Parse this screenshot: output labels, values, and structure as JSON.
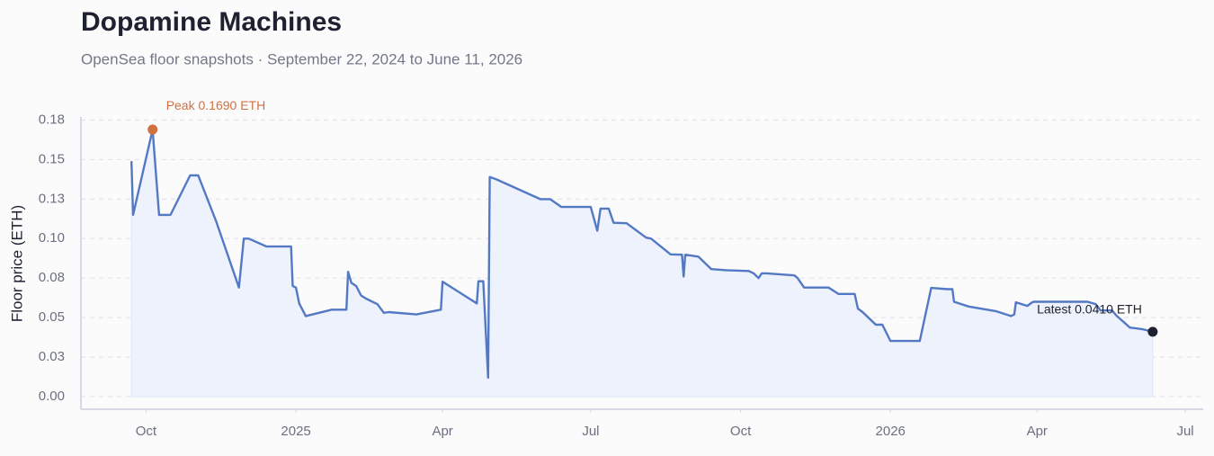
{
  "chart_data": {
    "type": "line",
    "title": "Dopamine Machines",
    "subtitle": "OpenSea floor snapshots · September 22, 2024 to June 11, 2026",
    "y_label": "Floor price (ETH)",
    "color": "#5479c4",
    "fill_color": "#edf2fc",
    "grid": true,
    "annotations": [
      {
        "text": "Peak 0.1690 ETH",
        "color": "#d2703f"
      },
      {
        "text": "Latest 0.0410 ETH",
        "color": "#1e2130"
      }
    ],
    "xlim": [
      "2024-08-22",
      "2026-07-12"
    ],
    "xticks": [
      {
        "value": "2024-10-01",
        "label": "Oct"
      },
      {
        "value": "2025-01-01",
        "label": "2025"
      },
      {
        "value": "2025-04-01",
        "label": "Apr"
      },
      {
        "value": "2025-07-01",
        "label": "Jul"
      },
      {
        "value": "2025-10-01",
        "label": "Oct"
      },
      {
        "value": "2026-01-01",
        "label": "2026"
      },
      {
        "value": "2026-04-01",
        "label": "Apr"
      },
      {
        "value": "2026-07-01",
        "label": "Jul"
      }
    ],
    "ylim": [
      -0.008,
      0.177
    ],
    "yticks": [
      {
        "value": 0,
        "label": "0.00"
      },
      {
        "value": 0.025,
        "label": "0.03"
      },
      0.05,
      {
        "value": 0.075,
        "label": "0.08"
      },
      {
        "value": 0.1,
        "label": "0.10"
      },
      {
        "value": 0.125,
        "label": "0.13"
      },
      0.15,
      {
        "value": 0.175,
        "label": "0.18"
      }
    ],
    "x": [
      "2024-09-22",
      "2024-09-23",
      "2024-10-05",
      "2024-10-09",
      "2024-10-16",
      "2024-10-28",
      "2024-11-02",
      "2024-11-13",
      "2024-11-27",
      "2024-11-30",
      "2024-12-03",
      "2024-12-14",
      "2024-12-29",
      "2024-12-30",
      "2025-01-01",
      "2025-01-03",
      "2025-01-07",
      "2025-01-23",
      "2025-02-01",
      "2025-02-02",
      "2025-02-04",
      "2025-02-07",
      "2025-02-10",
      "2025-02-13",
      "2025-02-20",
      "2025-02-24",
      "2025-02-27",
      "2025-03-16",
      "2025-03-31",
      "2025-04-01",
      "2025-04-22",
      "2025-04-23",
      "2025-04-26",
      "2025-04-29",
      "2025-04-30",
      "2025-05-04",
      "2025-05-31",
      "2025-06-06",
      "2025-06-13",
      "2025-07-01",
      "2025-07-05",
      "2025-07-07",
      "2025-07-12",
      "2025-07-15",
      "2025-07-23",
      "2025-08-04",
      "2025-08-07",
      "2025-08-19",
      "2025-08-26",
      "2025-08-27",
      "2025-08-28",
      "2025-09-05",
      "2025-09-13",
      "2025-09-22",
      "2025-10-06",
      "2025-10-09",
      "2025-10-12",
      "2025-10-14",
      "2025-10-17",
      "2025-11-03",
      "2025-11-05",
      "2025-11-09",
      "2025-11-24",
      "2025-11-30",
      "2025-12-10",
      "2025-12-12",
      "2025-12-15",
      "2025-12-23",
      "2025-12-27",
      "2026-01-01",
      "2026-01-19",
      "2026-01-26",
      "2026-02-05",
      "2026-02-08",
      "2026-02-09",
      "2026-02-18",
      "2026-03-07",
      "2026-03-16",
      "2026-03-18",
      "2026-03-19",
      "2026-03-26",
      "2026-03-29",
      "2026-03-30",
      "2026-05-02",
      "2026-05-07",
      "2026-05-10",
      "2026-05-17",
      "2026-05-20",
      "2026-05-28",
      "2026-06-05",
      "2026-06-11"
    ],
    "values": [
      0.149,
      0.115,
      0.169,
      0.115,
      0.115,
      0.14,
      0.14,
      0.111,
      0.069,
      0.1,
      0.1,
      0.095,
      0.095,
      0.07,
      0.069,
      0.059,
      0.051,
      0.055,
      0.055,
      0.079,
      0.072,
      0.07,
      0.064,
      0.062,
      0.0585,
      0.053,
      0.0535,
      0.052,
      0.055,
      0.0727,
      0.059,
      0.073,
      0.073,
      0.012,
      0.139,
      0.1375,
      0.125,
      0.125,
      0.12,
      0.12,
      0.105,
      0.119,
      0.119,
      0.11,
      0.1097,
      0.1006,
      0.1,
      0.09,
      0.0898,
      0.076,
      0.0898,
      0.0886,
      0.0807,
      0.08,
      0.0795,
      0.078,
      0.075,
      0.078,
      0.078,
      0.0767,
      0.075,
      0.069,
      0.069,
      0.065,
      0.065,
      0.0557,
      0.0534,
      0.0455,
      0.0455,
      0.0352,
      0.0352,
      0.0688,
      0.068,
      0.068,
      0.06,
      0.057,
      0.054,
      0.051,
      0.052,
      0.0597,
      0.0574,
      0.0597,
      0.06,
      0.06,
      0.0585,
      0.0545,
      0.0545,
      0.051,
      0.0437,
      0.0426,
      0.041
    ]
  }
}
